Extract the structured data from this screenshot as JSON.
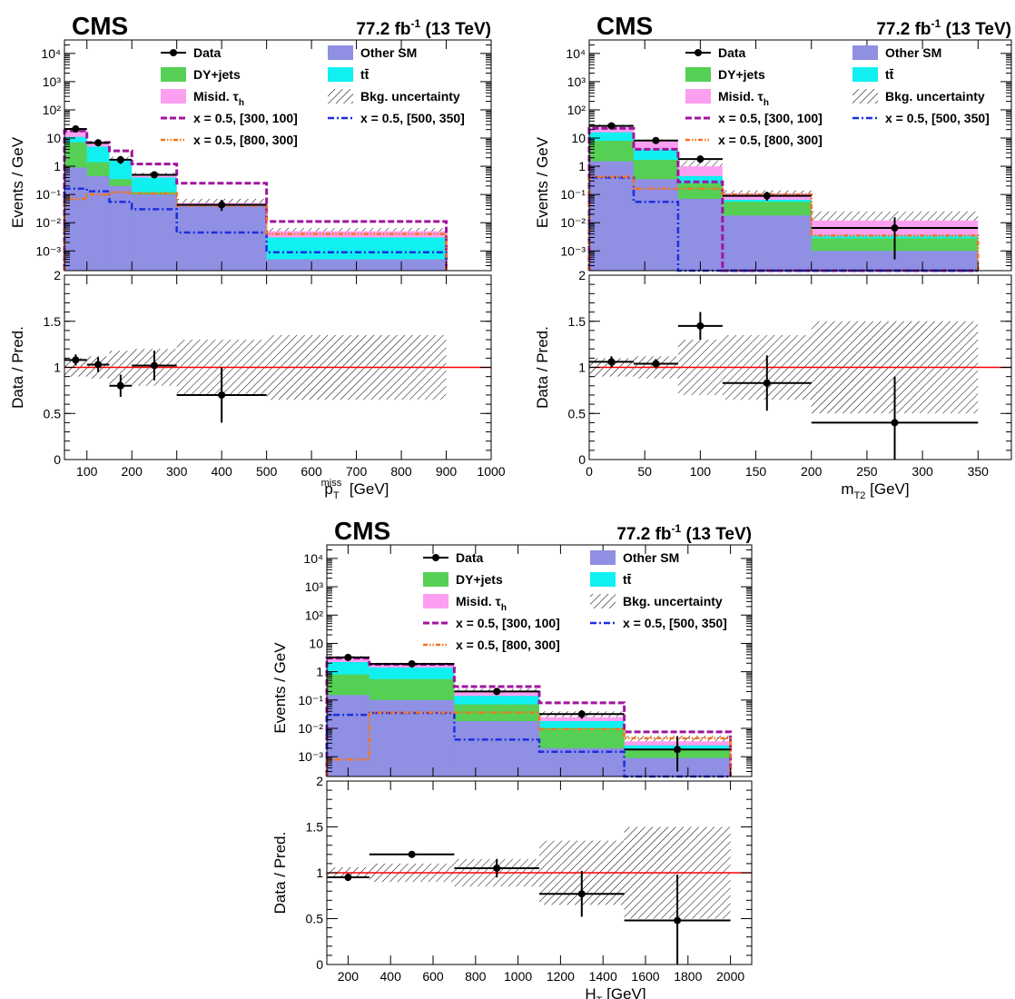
{
  "palette": {
    "other_sm": "#8f8fe3",
    "dy_jets": "#55d055",
    "ttbar": "#10f0f0",
    "misid_tau": "#fc9ff0",
    "signal_300_100": "#a0159e",
    "signal_500_350": "#1c2ee0",
    "signal_800_300": "#f5731c",
    "unity_line": "#ff0000"
  },
  "labels": {
    "cms": "CMS",
    "lumi_value": "77.2 fb",
    "lumi_exp": "-1",
    "lumi_energy": "(13 TeV)",
    "ylabel_main": "Events / GeV",
    "ylabel_ratio": "Data / Pred.",
    "legend": {
      "data": "Data",
      "other_sm": "Other SM",
      "dy_jets": "DY+jets",
      "ttbar": "tt̄",
      "misid": "Misid. τ",
      "misid_sub": "h",
      "bkg_unc": "Bkg. uncertainty",
      "sig1": "x = 0.5, [300, 100]",
      "sig2": "x = 0.5, [500, 350]",
      "sig3": "x = 0.5, [800, 300]"
    }
  },
  "chart_data": [
    {
      "type": "bar",
      "stacked": true,
      "log_y": true,
      "xlabel_main": "p",
      "xlabel_sub": "T",
      "xlabel_sup": "miss",
      "xlabel_unit": "[GeV]",
      "xlim": [
        50,
        1000
      ],
      "ylim": [
        0.0002,
        30000
      ],
      "xticks": [
        100,
        200,
        300,
        400,
        500,
        600,
        700,
        800,
        900,
        1000
      ],
      "yticks": [
        "10⁻³",
        "10⁻²",
        "10⁻¹",
        "1",
        "10",
        "10²",
        "10³",
        "10⁴"
      ],
      "ratio_ylim": [
        0,
        2
      ],
      "ratio_yticks": [
        "0",
        "0.5",
        "1",
        "1.5",
        "2"
      ],
      "bins": [
        50,
        100,
        150,
        200,
        300,
        500,
        900
      ],
      "stack": {
        "other_sm": [
          0.9,
          0.45,
          0.2,
          0.1,
          0.04,
          0.0005
        ],
        "dy_jets": [
          7.0,
          1.4,
          0.35,
          0.12,
          0.008,
          0.0005
        ],
        "ttbar": [
          11.0,
          5.0,
          1.6,
          0.4,
          0.045,
          0.003
        ],
        "misid_tau": [
          18.0,
          6.5,
          1.8,
          0.5,
          0.05,
          0.005
        ]
      },
      "bkg_unc_high": [
        22.0,
        7.5,
        2.2,
        0.6,
        0.07,
        0.0065
      ],
      "data": {
        "x": [
          75,
          125,
          175,
          250,
          400
        ],
        "y": [
          21.0,
          6.8,
          1.7,
          0.5,
          0.043
        ],
        "yerr_low": [
          3.0,
          1.5,
          0.5,
          0.07,
          0.017
        ],
        "yerr_high": [
          3.5,
          1.8,
          0.6,
          0.08,
          0.022
        ]
      },
      "signals": {
        "sig1": [
          18.0,
          7.0,
          3.5,
          1.2,
          0.25,
          0.011
        ],
        "sig2": [
          0.16,
          0.13,
          0.055,
          0.03,
          0.0045,
          0.0009
        ],
        "sig3": [
          0.07,
          0.1,
          0.12,
          0.11,
          0.04,
          0.004
        ]
      },
      "ratio": {
        "x": [
          75,
          125,
          175,
          250,
          400
        ],
        "xerr": [
          25,
          25,
          25,
          50,
          100
        ],
        "y": [
          1.08,
          1.03,
          0.8,
          1.02,
          0.7
        ],
        "yerr": [
          0.06,
          0.08,
          0.12,
          0.16,
          0.3
        ]
      },
      "ratio_unc": [
        0.1,
        0.12,
        0.18,
        0.2,
        0.3,
        0.35
      ]
    },
    {
      "type": "bar",
      "stacked": true,
      "log_y": true,
      "xlabel_main": "m",
      "xlabel_sub": "T2",
      "xlabel_sup": "",
      "xlabel_unit": "[GeV]",
      "xlim": [
        0,
        380
      ],
      "ylim": [
        0.0002,
        30000
      ],
      "xticks": [
        0,
        50,
        100,
        150,
        200,
        250,
        300,
        350
      ],
      "yticks": [
        "10⁻³",
        "10⁻²",
        "10⁻¹",
        "1",
        "10",
        "10²",
        "10³",
        "10⁴"
      ],
      "ratio_ylim": [
        0,
        2
      ],
      "ratio_yticks": [
        "0",
        "0.5",
        "1",
        "1.5",
        "2"
      ],
      "bins": [
        0,
        40,
        80,
        120,
        200,
        350
      ],
      "stack": {
        "other_sm": [
          1.5,
          0.35,
          0.07,
          0.018,
          0.001
        ],
        "dy_jets": [
          8.0,
          1.7,
          0.25,
          0.055,
          0.0028
        ],
        "ttbar": [
          16.0,
          4.0,
          0.45,
          0.065,
          0.0035
        ],
        "misid_tau": [
          24.0,
          7.5,
          1.0,
          0.11,
          0.012
        ]
      },
      "bkg_unc_high": [
        30.0,
        9.0,
        1.6,
        0.14,
        0.025
      ],
      "data": {
        "x": [
          20,
          60,
          100,
          160,
          275
        ],
        "y": [
          27.0,
          8.2,
          1.8,
          0.09,
          0.0065
        ],
        "yerr_low": [
          4.0,
          1.8,
          0.5,
          0.03,
          0.006
        ],
        "yerr_high": [
          4.5,
          2.0,
          0.6,
          0.035,
          0.009
        ]
      },
      "signals": {
        "sig1": [
          22.0,
          4.0,
          0.28,
          0.0002,
          0.0002
        ],
        "sig2": [
          0.4,
          0.055,
          0.0002,
          0.0002,
          0.0002
        ],
        "sig3": [
          0.42,
          0.16,
          0.16,
          0.1,
          0.0035
        ]
      },
      "ratio": {
        "x": [
          20,
          60,
          100,
          160,
          275
        ],
        "xerr": [
          20,
          20,
          20,
          40,
          75
        ],
        "y": [
          1.06,
          1.04,
          1.45,
          0.83,
          0.4
        ],
        "yerr": [
          0.06,
          0.05,
          0.15,
          0.3,
          0.5
        ]
      },
      "ratio_unc": [
        0.1,
        0.12,
        0.3,
        0.35,
        0.5
      ]
    },
    {
      "type": "bar",
      "stacked": true,
      "log_y": true,
      "xlabel_main": "H",
      "xlabel_sub": "T",
      "xlabel_sup": "",
      "xlabel_unit": "[GeV]",
      "xlim": [
        100,
        2100
      ],
      "ylim": [
        0.0002,
        30000
      ],
      "xticks": [
        200,
        400,
        600,
        800,
        1000,
        1200,
        1400,
        1600,
        1800,
        2000
      ],
      "yticks": [
        "10⁻³",
        "10⁻²",
        "10⁻¹",
        "1",
        "10",
        "10²",
        "10³",
        "10⁴"
      ],
      "ratio_ylim": [
        0,
        2
      ],
      "ratio_yticks": [
        "0",
        "0.5",
        "1",
        "1.5",
        "2"
      ],
      "bins": [
        100,
        300,
        700,
        1100,
        1500,
        2000
      ],
      "stack": {
        "other_sm": [
          0.15,
          0.1,
          0.018,
          0.002,
          0.0009
        ],
        "dy_jets": [
          0.8,
          0.55,
          0.07,
          0.01,
          0.0018
        ],
        "ttbar": [
          2.2,
          1.4,
          0.14,
          0.018,
          0.0025
        ],
        "misid_tau": [
          3.3,
          1.9,
          0.2,
          0.025,
          0.0035
        ]
      },
      "bkg_unc_high": [
        3.6,
        2.1,
        0.25,
        0.04,
        0.0055
      ],
      "data": {
        "x": [
          200,
          500,
          900,
          1300,
          1750
        ],
        "y": [
          3.2,
          1.9,
          0.2,
          0.032,
          0.0018
        ],
        "yerr_low": [
          0.3,
          0.15,
          0.03,
          0.01,
          0.0015
        ],
        "yerr_high": [
          0.35,
          0.18,
          0.035,
          0.012,
          0.0035
        ]
      },
      "signals": {
        "sig1": [
          3.0,
          1.8,
          0.3,
          0.08,
          0.0075
        ],
        "sig2": [
          0.03,
          0.035,
          0.004,
          0.0015,
          0.0002
        ],
        "sig3": [
          0.0008,
          0.036,
          0.036,
          0.0095,
          0.0045
        ]
      },
      "ratio": {
        "x": [
          200,
          500,
          900,
          1300,
          1750
        ],
        "xerr": [
          100,
          200,
          200,
          200,
          250
        ],
        "y": [
          0.95,
          1.2,
          1.05,
          0.77,
          0.48
        ],
        "yerr": [
          0.04,
          0.03,
          0.1,
          0.25,
          0.5
        ]
      },
      "ratio_unc": [
        0.06,
        0.1,
        0.15,
        0.35,
        0.5
      ]
    }
  ]
}
